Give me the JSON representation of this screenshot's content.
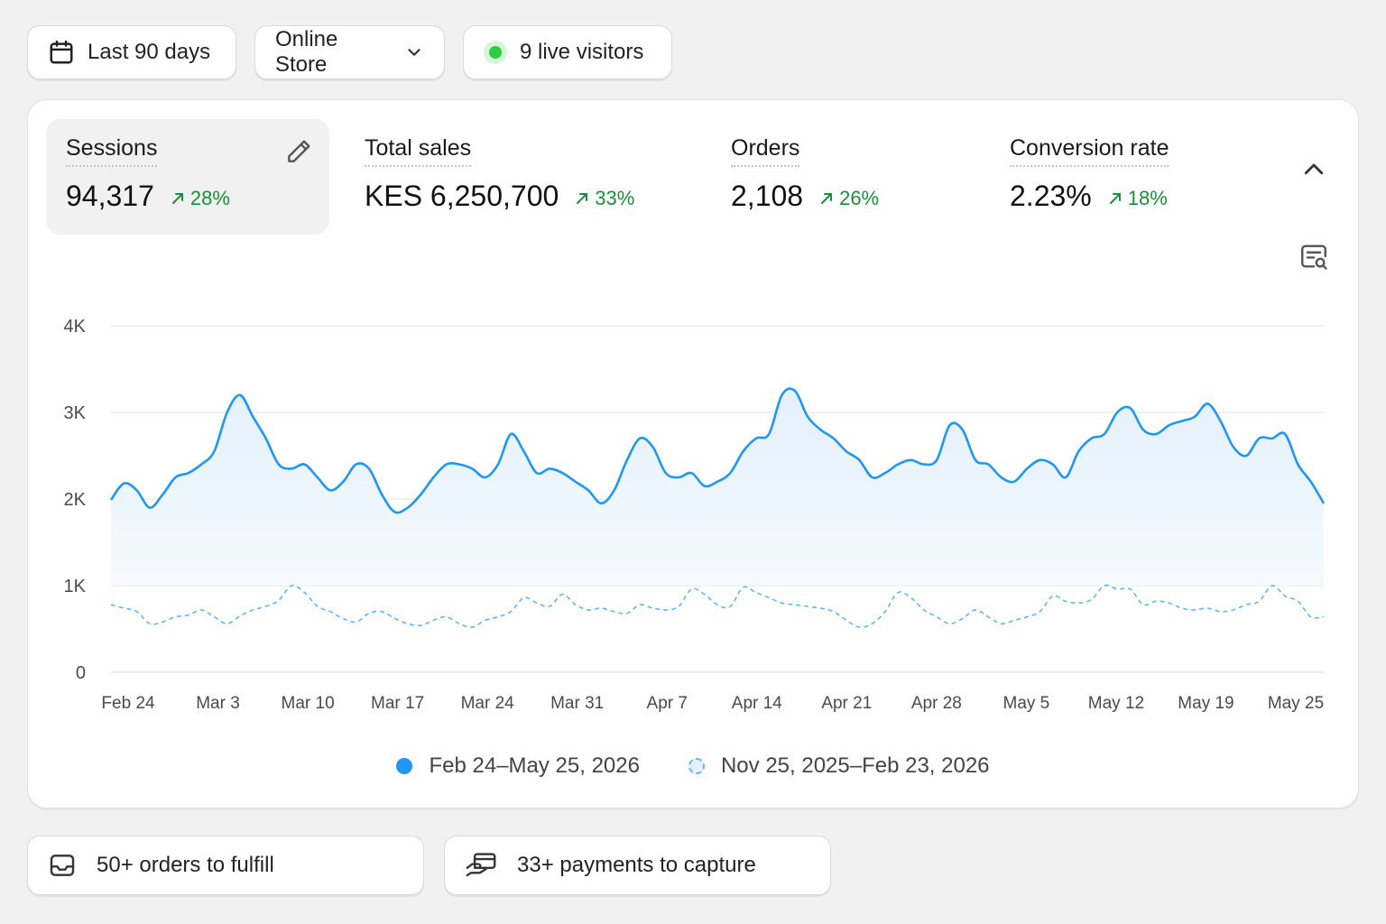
{
  "toolbar": {
    "date_range_label": "Last 90 days",
    "channel_label": "Online Store",
    "live_visitors_label": "9 live visitors"
  },
  "metrics": [
    {
      "label": "Sessions",
      "value": "94,317",
      "change": "28%"
    },
    {
      "label": "Total sales",
      "value": "KES 6,250,700",
      "change": "33%"
    },
    {
      "label": "Orders",
      "value": "2,108",
      "change": "26%"
    },
    {
      "label": "Conversion rate",
      "value": "2.23%",
      "change": "18%"
    }
  ],
  "colors": {
    "primary_series": "#2196f3",
    "comparison_series": "#64b5f6",
    "positive_change": "#1a8f3a",
    "live_dot": "#2ecc40"
  },
  "chart_data": {
    "type": "line",
    "title": "",
    "xlabel": "",
    "ylabel": "",
    "ylim": [
      0,
      4000
    ],
    "y_ticks": [
      0,
      1000,
      2000,
      3000,
      4000
    ],
    "y_tick_labels": [
      "0",
      "1K",
      "2K",
      "3K",
      "4K"
    ],
    "x_tick_labels": [
      "Feb 24",
      "Mar 3",
      "Mar 10",
      "Mar 17",
      "Mar 24",
      "Mar 31",
      "Apr 7",
      "Apr 14",
      "Apr 21",
      "Apr 28",
      "May 5",
      "May 12",
      "May 19",
      "May 25"
    ],
    "grid": true,
    "legend_position": "bottom",
    "series": [
      {
        "name": "Feb 24–May 25, 2026",
        "style": "solid",
        "values": [
          1990,
          2180,
          2100,
          1900,
          2050,
          2250,
          2300,
          2400,
          2550,
          3000,
          3200,
          2950,
          2700,
          2400,
          2350,
          2400,
          2250,
          2100,
          2200,
          2400,
          2350,
          2050,
          1850,
          1900,
          2050,
          2250,
          2400,
          2400,
          2350,
          2250,
          2400,
          2750,
          2550,
          2300,
          2350,
          2300,
          2200,
          2100,
          1950,
          2100,
          2450,
          2700,
          2600,
          2300,
          2250,
          2300,
          2150,
          2200,
          2300,
          2550,
          2700,
          2750,
          3200,
          3250,
          2950,
          2800,
          2700,
          2550,
          2450,
          2250,
          2300,
          2400,
          2450,
          2400,
          2450,
          2850,
          2800,
          2450,
          2400,
          2250,
          2200,
          2350,
          2450,
          2400,
          2250,
          2550,
          2700,
          2750,
          3000,
          3050,
          2800,
          2750,
          2850,
          2900,
          2950,
          3100,
          2900,
          2600,
          2500,
          2700,
          2700,
          2750,
          2400,
          2200,
          1950
        ]
      },
      {
        "name": "Nov 25, 2025–Feb 23, 2026",
        "style": "dashed",
        "values": [
          780,
          740,
          700,
          560,
          580,
          640,
          660,
          720,
          640,
          560,
          650,
          720,
          760,
          830,
          1000,
          920,
          760,
          700,
          620,
          580,
          680,
          700,
          620,
          560,
          540,
          600,
          640,
          560,
          520,
          600,
          640,
          700,
          860,
          800,
          760,
          900,
          780,
          720,
          740,
          700,
          680,
          780,
          740,
          720,
          760,
          960,
          900,
          780,
          760,
          980,
          920,
          860,
          800,
          780,
          760,
          740,
          700,
          600,
          520,
          560,
          700,
          920,
          860,
          720,
          640,
          560,
          620,
          720,
          640,
          560,
          600,
          640,
          700,
          880,
          820,
          800,
          840,
          1000,
          960,
          960,
          780,
          820,
          800,
          740,
          720,
          740,
          700,
          720,
          780,
          820,
          1000,
          880,
          820,
          640,
          640
        ]
      }
    ]
  },
  "tasks": {
    "orders_label": "50+ orders to fulfill",
    "payments_label": "33+ payments to capture"
  }
}
